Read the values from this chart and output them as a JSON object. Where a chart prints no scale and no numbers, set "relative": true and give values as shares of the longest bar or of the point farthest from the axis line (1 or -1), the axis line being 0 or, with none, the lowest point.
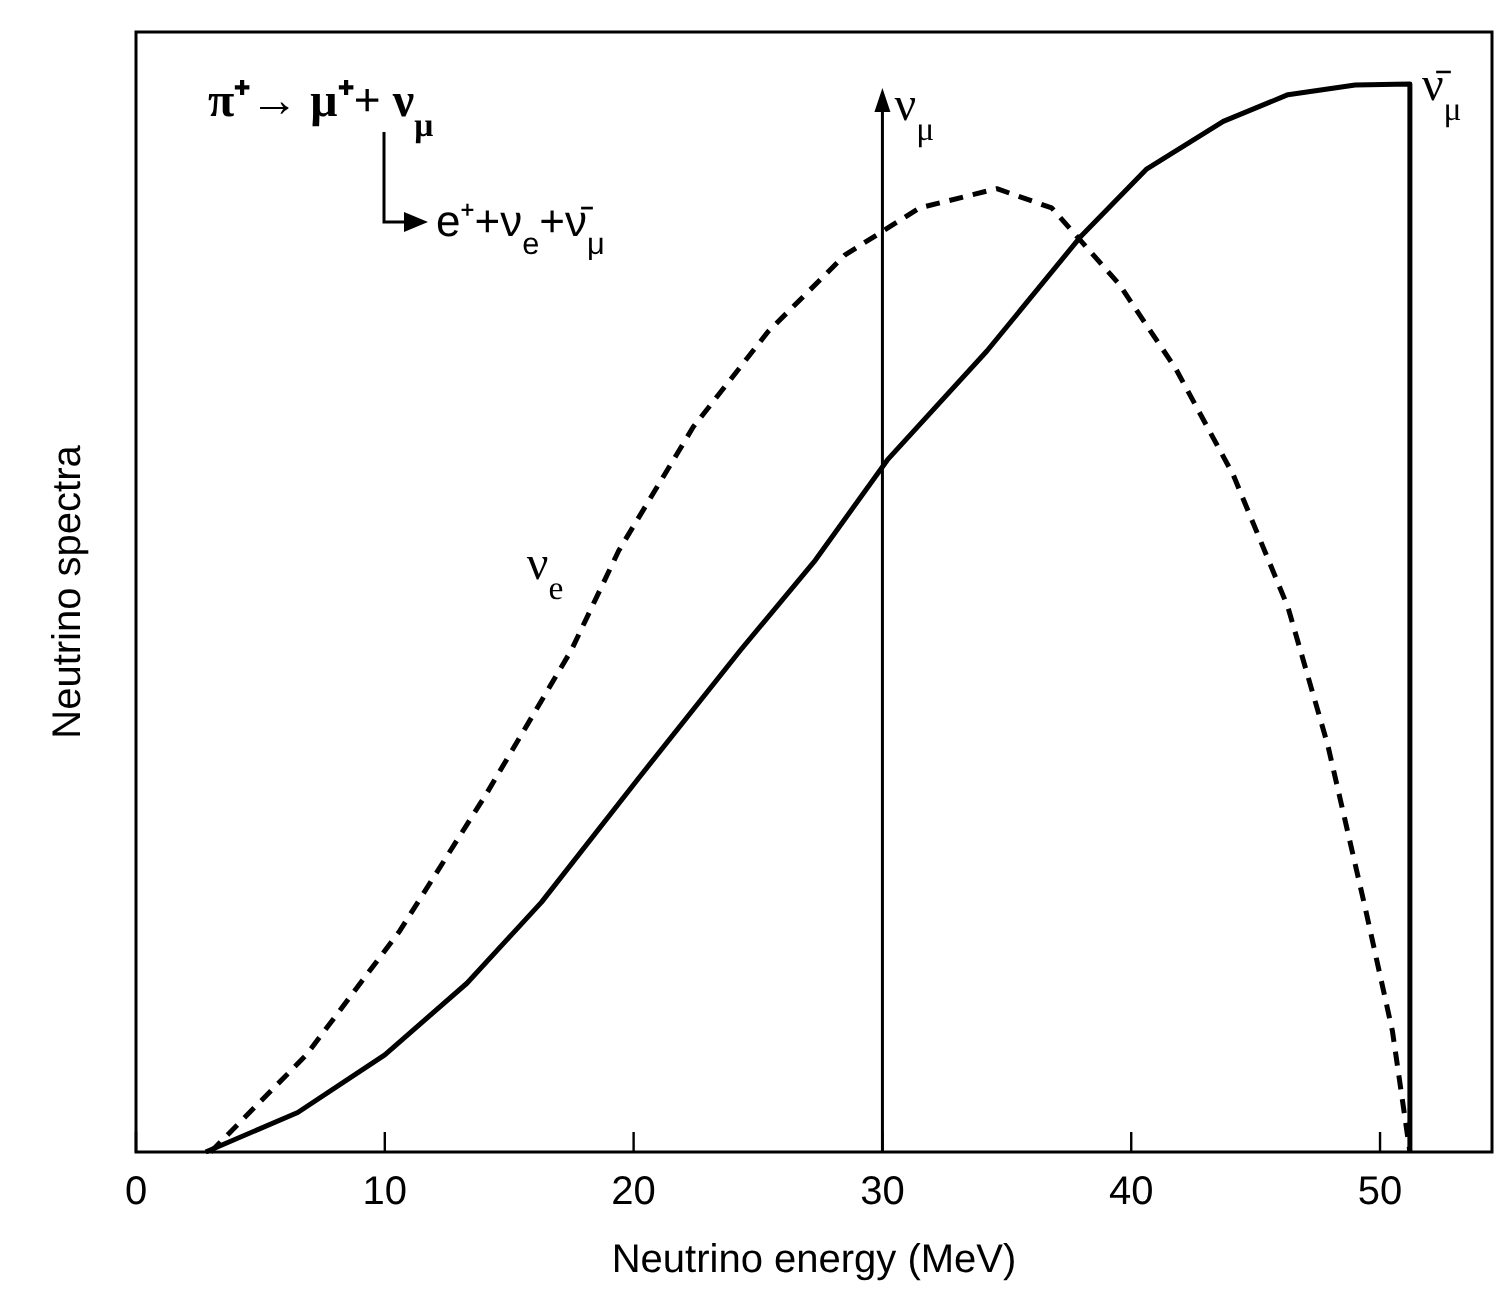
{
  "chart_data": {
    "type": "line",
    "relative": true,
    "xlabel": "Neutrino energy (MeV)",
    "ylabel": "Neutrino spectra",
    "xlim": [
      0,
      54.5
    ],
    "xticks": [
      0,
      10,
      20,
      30,
      40,
      50
    ],
    "series": [
      {
        "name": "ν̄$_{μ}$",
        "color": "#000000",
        "line_style": "solid",
        "x": [
          2.8,
          6.5,
          10.0,
          13.3,
          16.3,
          20.2,
          24.3,
          27.3,
          30.2,
          34.2,
          38.0,
          40.6,
          43.7,
          46.3,
          49.0,
          51.2,
          51.2
        ],
        "values": [
          0,
          0.037,
          0.091,
          0.158,
          0.234,
          0.35,
          0.47,
          0.554,
          0.648,
          0.75,
          0.858,
          0.92,
          0.965,
          0.99,
          0.999,
          1.0,
          0
        ]
      },
      {
        "name": "ν$_{e}$",
        "color": "#000000",
        "line_style": "dashed",
        "x": [
          3.0,
          6.85,
          10.6,
          14.1,
          17.5,
          19.4,
          22.4,
          25.4,
          28.5,
          31.5,
          34.6,
          36.8,
          39.5,
          41.8,
          44.1,
          46.3,
          47.9,
          49.4,
          50.5,
          51.2
        ],
        "values": [
          0,
          0.091,
          0.207,
          0.336,
          0.47,
          0.563,
          0.679,
          0.768,
          0.84,
          0.884,
          0.902,
          0.884,
          0.813,
          0.733,
          0.634,
          0.51,
          0.381,
          0.229,
          0.113,
          0
        ]
      }
    ],
    "ref_lines": [
      {
        "axis": "x",
        "value": 30,
        "label": "ν$_{μ}$"
      }
    ],
    "annotations": [
      "π⁺→ μ⁺+ ν$_{μ}$",
      "e⁺+ν$_{e}$+ν̄$_{μ}$"
    ]
  }
}
